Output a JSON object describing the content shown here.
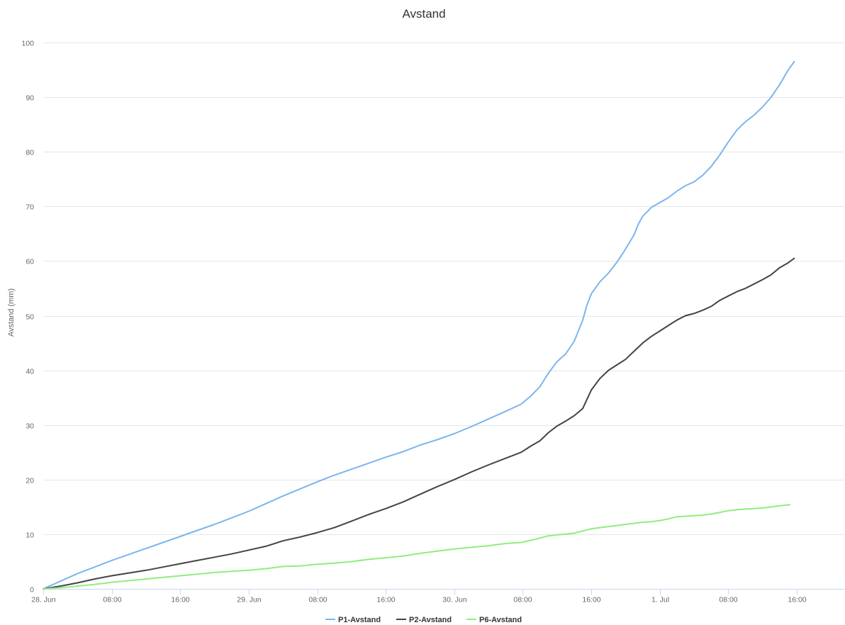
{
  "chart_data": {
    "type": "line",
    "title": "Avstand",
    "ylabel": "Avstand (mm)",
    "xlabel": "",
    "ylim": [
      0,
      100
    ],
    "y_ticks": [
      0,
      10,
      20,
      30,
      40,
      50,
      60,
      70,
      80,
      90,
      100
    ],
    "xlim": [
      0,
      110
    ],
    "x_unit": "hours since 28. Jun 00:00",
    "x_ticks": [
      {
        "x": 0,
        "label": "28. Jun"
      },
      {
        "x": 8,
        "label": "08:00"
      },
      {
        "x": 16,
        "label": "16:00"
      },
      {
        "x": 24,
        "label": "29. Jun"
      },
      {
        "x": 32,
        "label": "08:00"
      },
      {
        "x": 40,
        "label": "16:00"
      },
      {
        "x": 48,
        "label": "30. Jun"
      },
      {
        "x": 56,
        "label": "08:00"
      },
      {
        "x": 64,
        "label": "16:00"
      },
      {
        "x": 72,
        "label": "1. Jul"
      },
      {
        "x": 80,
        "label": "08:00"
      },
      {
        "x": 88,
        "label": "16:00"
      }
    ],
    "grid": true,
    "legend_position": "bottom-center",
    "series": [
      {
        "name": "P1-Avstand",
        "color": "#7cb5ec",
        "points": [
          [
            0,
            0
          ],
          [
            2,
            1.4
          ],
          [
            4,
            2.8
          ],
          [
            6,
            4
          ],
          [
            8,
            5.2
          ],
          [
            10,
            6.3
          ],
          [
            12,
            7.4
          ],
          [
            14,
            8.5
          ],
          [
            16,
            9.6
          ],
          [
            18,
            10.7
          ],
          [
            20,
            11.8
          ],
          [
            22,
            13
          ],
          [
            24,
            14.2
          ],
          [
            26,
            15.6
          ],
          [
            28,
            17
          ],
          [
            30,
            18.3
          ],
          [
            32,
            19.6
          ],
          [
            34,
            20.8
          ],
          [
            36,
            21.9
          ],
          [
            38,
            23
          ],
          [
            40,
            24.1
          ],
          [
            42,
            25.1
          ],
          [
            44,
            26.3
          ],
          [
            46,
            27.3
          ],
          [
            48,
            28.4
          ],
          [
            50,
            29.7
          ],
          [
            52,
            31.1
          ],
          [
            54,
            32.5
          ],
          [
            55.8,
            33.8
          ],
          [
            57,
            35.4
          ],
          [
            58,
            37
          ],
          [
            59,
            39.5
          ],
          [
            60,
            41.6
          ],
          [
            61,
            43
          ],
          [
            62,
            45.3
          ],
          [
            63,
            49.2
          ],
          [
            63.5,
            52
          ],
          [
            64,
            54
          ],
          [
            65,
            56.2
          ],
          [
            66,
            57.8
          ],
          [
            67,
            59.8
          ],
          [
            68,
            62.2
          ],
          [
            69,
            64.8
          ],
          [
            69.5,
            66.8
          ],
          [
            70,
            68.2
          ],
          [
            71,
            69.8
          ],
          [
            72,
            70.7
          ],
          [
            73,
            71.6
          ],
          [
            74,
            72.8
          ],
          [
            75,
            73.8
          ],
          [
            76,
            74.5
          ],
          [
            77,
            75.7
          ],
          [
            78,
            77.3
          ],
          [
            79,
            79.4
          ],
          [
            80,
            81.8
          ],
          [
            81,
            84
          ],
          [
            82,
            85.5
          ],
          [
            83,
            86.7
          ],
          [
            84,
            88.2
          ],
          [
            85,
            90
          ],
          [
            86,
            92.3
          ],
          [
            87,
            95
          ],
          [
            87.7,
            96.5
          ]
        ]
      },
      {
        "name": "P2-Avstand",
        "color": "#434348",
        "points": [
          [
            0,
            0
          ],
          [
            2,
            0.5
          ],
          [
            4,
            1.1
          ],
          [
            6,
            1.8
          ],
          [
            8,
            2.4
          ],
          [
            10,
            2.9
          ],
          [
            12,
            3.4
          ],
          [
            14,
            4
          ],
          [
            16,
            4.6
          ],
          [
            18,
            5.2
          ],
          [
            20,
            5.8
          ],
          [
            22,
            6.4
          ],
          [
            24,
            7.1
          ],
          [
            26,
            7.8
          ],
          [
            28,
            8.8
          ],
          [
            30,
            9.5
          ],
          [
            32,
            10.3
          ],
          [
            34,
            11.2
          ],
          [
            36,
            12.4
          ],
          [
            38,
            13.6
          ],
          [
            40,
            14.7
          ],
          [
            42,
            15.9
          ],
          [
            44,
            17.3
          ],
          [
            46,
            18.7
          ],
          [
            48,
            20
          ],
          [
            50,
            21.4
          ],
          [
            52,
            22.7
          ],
          [
            54,
            23.9
          ],
          [
            55.8,
            25
          ],
          [
            57,
            26.2
          ],
          [
            58,
            27.1
          ],
          [
            59,
            28.6
          ],
          [
            60,
            29.8
          ],
          [
            61,
            30.7
          ],
          [
            62,
            31.7
          ],
          [
            63,
            33
          ],
          [
            64,
            36.4
          ],
          [
            65,
            38.5
          ],
          [
            66,
            40
          ],
          [
            67,
            41
          ],
          [
            68,
            42
          ],
          [
            69,
            43.5
          ],
          [
            70,
            45
          ],
          [
            71,
            46.2
          ],
          [
            72,
            47.2
          ],
          [
            73,
            48.2
          ],
          [
            74,
            49.2
          ],
          [
            75,
            50
          ],
          [
            76,
            50.4
          ],
          [
            77,
            51
          ],
          [
            78,
            51.7
          ],
          [
            79,
            52.8
          ],
          [
            80,
            53.6
          ],
          [
            81,
            54.4
          ],
          [
            82,
            55
          ],
          [
            83,
            55.8
          ],
          [
            84,
            56.6
          ],
          [
            85,
            57.5
          ],
          [
            86,
            58.8
          ],
          [
            87,
            59.7
          ],
          [
            87.7,
            60.5
          ]
        ]
      },
      {
        "name": "P6-Avstand",
        "color": "#90ed7d",
        "points": [
          [
            0,
            0
          ],
          [
            2,
            0.2
          ],
          [
            4,
            0.5
          ],
          [
            6,
            0.8
          ],
          [
            8,
            1.2
          ],
          [
            10,
            1.5
          ],
          [
            12,
            1.8
          ],
          [
            14,
            2.1
          ],
          [
            16,
            2.4
          ],
          [
            18,
            2.7
          ],
          [
            20,
            3
          ],
          [
            22,
            3.2
          ],
          [
            24,
            3.4
          ],
          [
            26,
            3.7
          ],
          [
            28,
            4.1
          ],
          [
            30,
            4.2
          ],
          [
            32,
            4.5
          ],
          [
            34,
            4.7
          ],
          [
            36,
            5
          ],
          [
            38,
            5.4
          ],
          [
            40,
            5.7
          ],
          [
            42,
            6
          ],
          [
            44,
            6.5
          ],
          [
            46,
            6.9
          ],
          [
            48,
            7.3
          ],
          [
            50,
            7.6
          ],
          [
            52,
            7.9
          ],
          [
            54,
            8.3
          ],
          [
            55.8,
            8.5
          ],
          [
            57,
            8.9
          ],
          [
            58,
            9.3
          ],
          [
            59,
            9.7
          ],
          [
            60,
            9.9
          ],
          [
            61,
            10
          ],
          [
            62,
            10.2
          ],
          [
            63,
            10.6
          ],
          [
            64,
            11
          ],
          [
            65,
            11.2
          ],
          [
            66,
            11.4
          ],
          [
            67,
            11.6
          ],
          [
            68,
            11.8
          ],
          [
            69,
            12
          ],
          [
            70,
            12.2
          ],
          [
            71,
            12.3
          ],
          [
            72,
            12.5
          ],
          [
            73,
            12.8
          ],
          [
            74,
            13.2
          ],
          [
            75,
            13.3
          ],
          [
            76,
            13.4
          ],
          [
            77,
            13.5
          ],
          [
            78,
            13.7
          ],
          [
            79,
            14
          ],
          [
            80,
            14.3
          ],
          [
            81,
            14.5
          ],
          [
            82,
            14.6
          ],
          [
            83,
            14.7
          ],
          [
            84,
            14.8
          ],
          [
            85,
            15
          ],
          [
            86,
            15.2
          ],
          [
            87.2,
            15.4
          ]
        ]
      }
    ]
  }
}
